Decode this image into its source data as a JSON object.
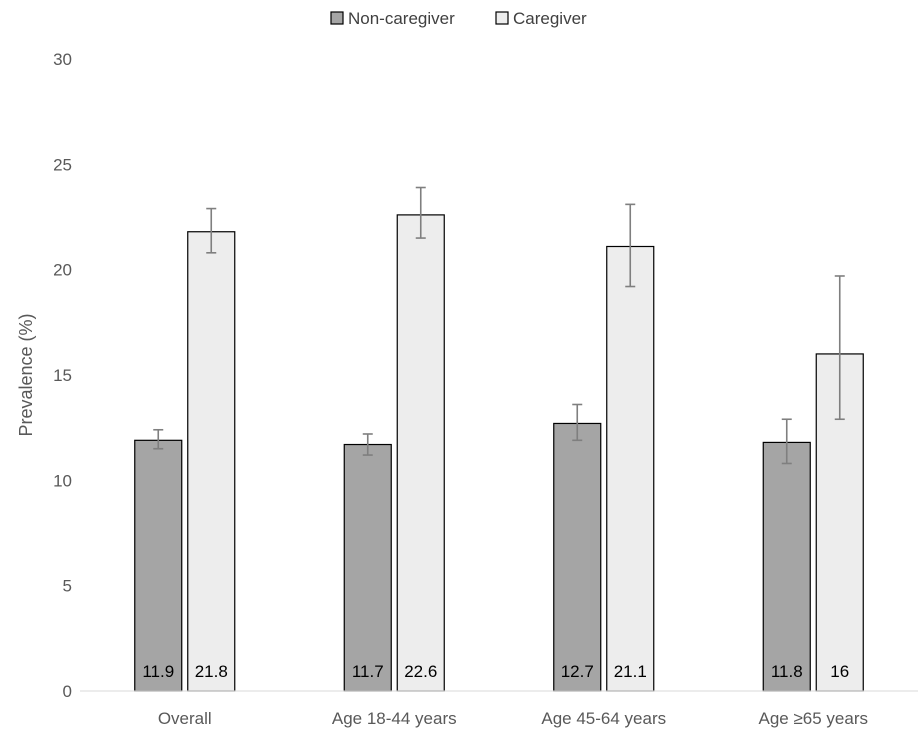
{
  "chart_data": {
    "type": "bar",
    "title": "",
    "xlabel": "",
    "ylabel": "Prevalence (%)",
    "ylim": [
      0,
      30
    ],
    "yticks": [
      0,
      5,
      10,
      15,
      20,
      25,
      30
    ],
    "grid": false,
    "legend_position": "top-center",
    "categories": [
      "Overall",
      "Age 18-44 years",
      "Age 45-64 years",
      "Age ≥65 years"
    ],
    "series": [
      {
        "name": "Non-caregiver",
        "color": "#a5a5a5",
        "values": [
          11.9,
          11.7,
          12.7,
          11.8
        ],
        "labels": [
          "11.9",
          "11.7",
          "12.7",
          "11.8"
        ],
        "ci_low": [
          11.5,
          11.2,
          11.9,
          10.8
        ],
        "ci_high": [
          12.4,
          12.2,
          13.6,
          12.9
        ]
      },
      {
        "name": "Caregiver",
        "color": "#ededed",
        "values": [
          21.8,
          22.6,
          21.1,
          16
        ],
        "labels": [
          "21.8",
          "22.6",
          "21.1",
          "16"
        ],
        "ci_low": [
          20.8,
          21.5,
          19.2,
          12.9
        ],
        "ci_high": [
          22.9,
          23.9,
          23.1,
          19.7
        ]
      }
    ]
  }
}
